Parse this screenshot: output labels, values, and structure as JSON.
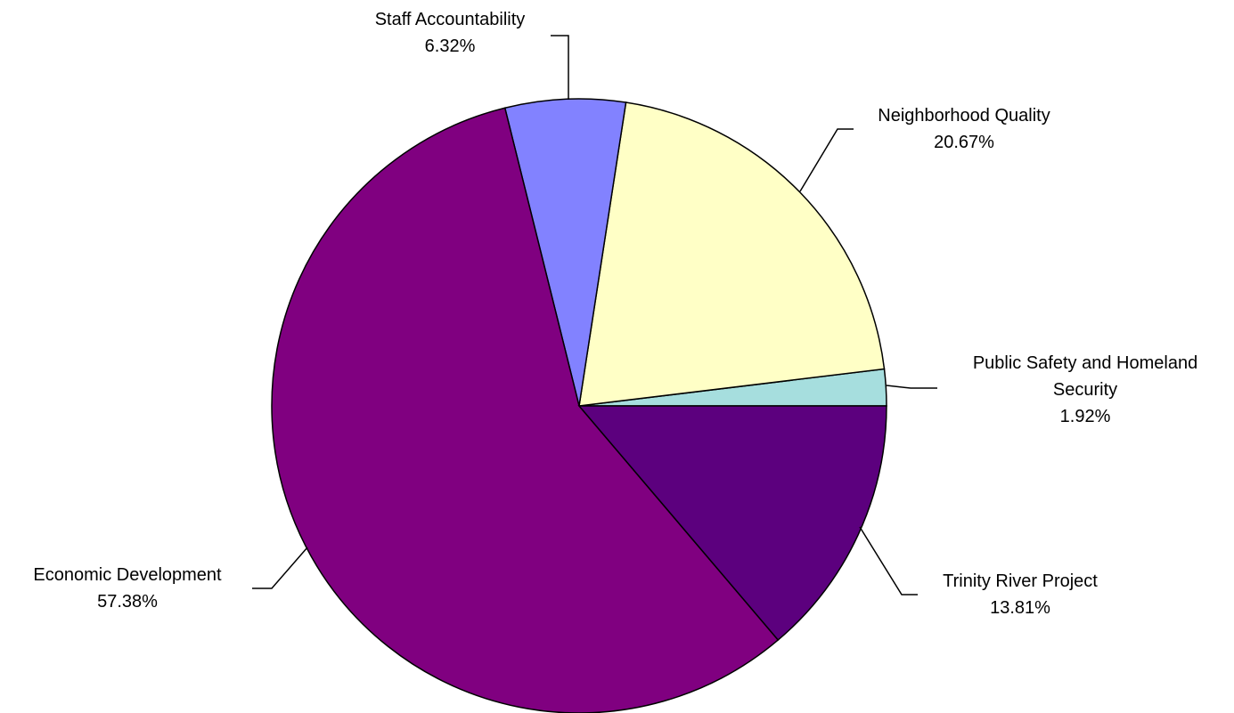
{
  "chart_data": {
    "type": "pie",
    "title": "",
    "slices": [
      {
        "label_lines": [
          "Public Safety and Homeland",
          "Security"
        ],
        "value_label": "1.92%",
        "value": 1.92,
        "color": "#A6DEDE"
      },
      {
        "label_lines": [
          "Neighborhood Quality"
        ],
        "value_label": "20.67%",
        "value": 20.67,
        "color": "#FFFFC6"
      },
      {
        "label_lines": [
          "Staff Accountability"
        ],
        "value_label": "6.32%",
        "value": 6.32,
        "color": "#8282FF"
      },
      {
        "label_lines": [
          "Economic Development"
        ],
        "value_label": "57.38%",
        "value": 57.38,
        "color": "#800080"
      },
      {
        "label_lines": [
          "Trinity River Project"
        ],
        "value_label": "13.81%",
        "value": 13.81,
        "color": "#5C007E"
      }
    ]
  }
}
